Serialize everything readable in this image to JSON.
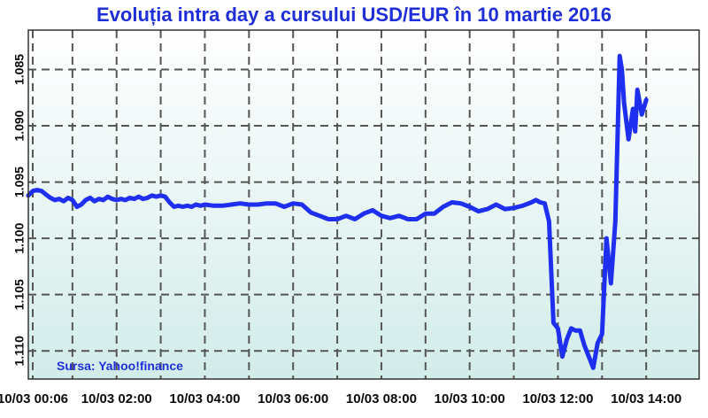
{
  "chart_data": {
    "type": "line",
    "title": "Evoluția intra day a cursului USD/EUR în 10 martie 2016",
    "source": "Sursa: Yahoo!finance",
    "y_tick_labels": [
      "1.085",
      "1.090",
      "1.095",
      "1.100",
      "1.105",
      "1.110"
    ],
    "x_tick_labels": [
      "10/03 00:06",
      "10/03 02:00",
      "10/03 04:00",
      "10/03 06:00",
      "10/03 08:00",
      "10/03 10:00",
      "10/03 12:00",
      "10/03 14:00"
    ],
    "x_ticks_hours": [
      0.1,
      2,
      4,
      6,
      8,
      10,
      12,
      14
    ],
    "xlim_hours": [
      0,
      15.2
    ],
    "ylim": [
      1.0815,
      1.1125
    ],
    "y_inverted": true,
    "grid": true,
    "series": [
      {
        "color": "#1f2ff0",
        "x": [
          0.0,
          0.1,
          0.2,
          0.3,
          0.4,
          0.5,
          0.6,
          0.7,
          0.8,
          0.9,
          1.0,
          1.1,
          1.2,
          1.3,
          1.4,
          1.5,
          1.6,
          1.7,
          1.8,
          1.9,
          2.0,
          2.1,
          2.2,
          2.3,
          2.4,
          2.5,
          2.6,
          2.7,
          2.8,
          2.9,
          3.0,
          3.1,
          3.2,
          3.3,
          3.4,
          3.5,
          3.6,
          3.7,
          3.8,
          3.9,
          4.0,
          4.2,
          4.4,
          4.6,
          4.8,
          5.0,
          5.2,
          5.4,
          5.6,
          5.8,
          6.0,
          6.2,
          6.4,
          6.6,
          6.8,
          7.0,
          7.2,
          7.4,
          7.6,
          7.8,
          8.0,
          8.2,
          8.4,
          8.6,
          8.8,
          9.0,
          9.2,
          9.4,
          9.6,
          9.8,
          10.0,
          10.2,
          10.4,
          10.6,
          10.8,
          11.0,
          11.2,
          11.4,
          11.5,
          11.6,
          11.7,
          11.8,
          11.9,
          12.0,
          12.1,
          12.2,
          12.3,
          12.4,
          12.5,
          12.6,
          12.7,
          12.8,
          12.9,
          13.0,
          13.1,
          13.2,
          13.3,
          13.4,
          13.45,
          13.5,
          13.6,
          13.7,
          13.75,
          13.8,
          13.9,
          14.0
        ],
        "y": [
          1.0962,
          1.0958,
          1.0957,
          1.0958,
          1.0961,
          1.0964,
          1.0966,
          1.0965,
          1.0967,
          1.0964,
          1.0966,
          1.0972,
          1.097,
          1.0966,
          1.0964,
          1.0967,
          1.0965,
          1.0966,
          1.0963,
          1.0965,
          1.0966,
          1.0965,
          1.0966,
          1.0964,
          1.0965,
          1.0963,
          1.0965,
          1.0964,
          1.0962,
          1.0963,
          1.0962,
          1.0963,
          1.0968,
          1.0972,
          1.0971,
          1.0972,
          1.0971,
          1.0972,
          1.097,
          1.0971,
          1.097,
          1.0971,
          1.0971,
          1.097,
          1.0969,
          1.097,
          1.097,
          1.0969,
          1.0969,
          1.0972,
          1.0969,
          1.097,
          1.0977,
          1.098,
          1.0983,
          1.0983,
          1.098,
          1.0983,
          1.0978,
          1.0975,
          1.098,
          1.0982,
          1.098,
          1.0983,
          1.0983,
          1.0978,
          1.0978,
          1.0972,
          1.0968,
          1.0969,
          1.0972,
          1.0976,
          1.0974,
          1.097,
          1.0974,
          1.0973,
          1.0971,
          1.0968,
          1.0966,
          1.0968,
          1.0969,
          1.0985,
          1.1075,
          1.108,
          1.1105,
          1.109,
          1.108,
          1.1082,
          1.1082,
          1.1095,
          1.1105,
          1.1115,
          1.1093,
          1.1085,
          1.1,
          1.104,
          1.0985,
          1.0838,
          1.085,
          1.088,
          1.0912,
          1.0885,
          1.0905,
          1.0868,
          1.089,
          1.0877
        ]
      }
    ]
  }
}
